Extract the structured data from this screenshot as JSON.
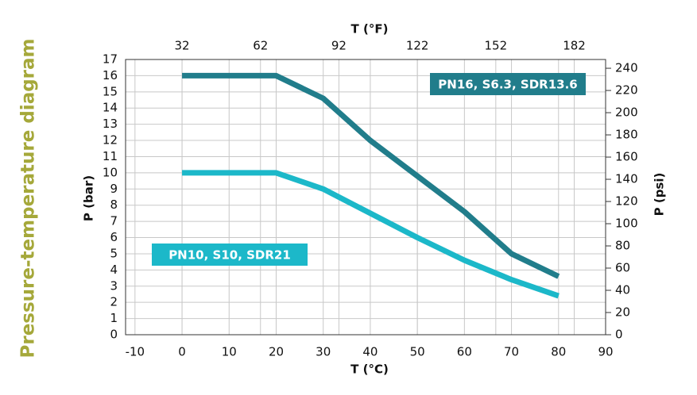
{
  "chart_data": {
    "type": "line",
    "title": "Pressure-temperature diagram",
    "xlabel": "T (°C)",
    "x2label": "T (°F)",
    "ylabel": "P (bar)",
    "y2label": "P (psi)",
    "x": [
      0,
      20,
      30,
      40,
      50,
      60,
      70,
      80
    ],
    "series": [
      {
        "name": "PN16, S6.3, SDR13.6",
        "color": "#217d8b",
        "values": [
          16,
          16,
          14.6,
          12,
          9.8,
          7.6,
          5,
          3.6
        ]
      },
      {
        "name": "PN10, S10, SDR21",
        "color": "#1cb8c9",
        "values": [
          10,
          10,
          9,
          7.5,
          6,
          4.6,
          3.4,
          2.4
        ]
      }
    ],
    "xlim": [
      -12,
      90
    ],
    "xticks": [
      -10,
      0,
      10,
      20,
      30,
      40,
      50,
      60,
      70,
      80,
      90
    ],
    "x2lim": [
      10.4,
      194
    ],
    "x2ticks": [
      32,
      62,
      92,
      122,
      152,
      182
    ],
    "ylim": [
      0,
      17
    ],
    "yticks": [
      0,
      1,
      2,
      3,
      4,
      5,
      6,
      7,
      8,
      9,
      10,
      11,
      12,
      13,
      14,
      15,
      16,
      17
    ],
    "y2lim": [
      0,
      247.9
    ],
    "y2ticks": [
      0,
      20,
      40,
      60,
      80,
      100,
      120,
      140,
      160,
      180,
      200,
      220,
      240
    ],
    "grid": true
  }
}
